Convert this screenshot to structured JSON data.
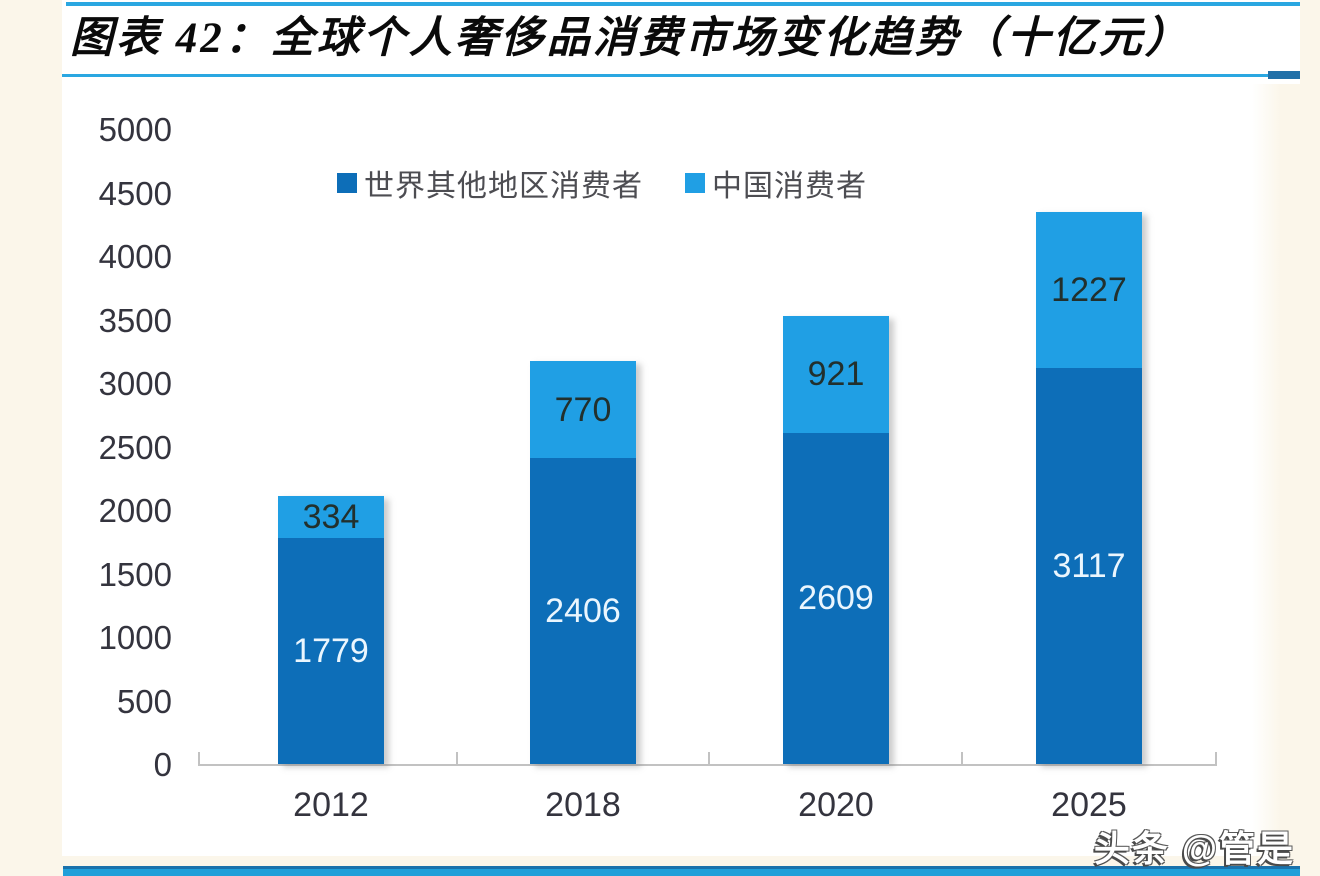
{
  "page": {
    "background": "#FBF6EA",
    "panel_background": "#FFFFFF",
    "accent_line_color": "#2AA7E1",
    "accent_tab_color": "#2170A8",
    "bottom_bar_top_color": "#1A72AC",
    "bottom_bar_color": "#209FD9"
  },
  "header": {
    "title": "图表 42：全球个人奢侈品消费市场变化趋势（十亿元）"
  },
  "watermark": {
    "text": "头条 @管是"
  },
  "chart_data": {
    "type": "bar",
    "stacked": true,
    "title": "全球个人奢侈品消费市场变化趋势（十亿元）",
    "unit": "十亿元",
    "categories": [
      "2012",
      "2018",
      "2020",
      "2025"
    ],
    "series": [
      {
        "name": "世界其他地区消费者",
        "color": "#0D6EB8",
        "label_color": "#EAF6FE",
        "values": [
          1779,
          2406,
          2609,
          3117
        ]
      },
      {
        "name": "中国消费者",
        "color": "#209FE4",
        "label_color": "#22302D",
        "values": [
          334,
          770,
          921,
          1227
        ]
      }
    ],
    "totals": [
      2113,
      3176,
      3530,
      4344
    ],
    "ylim": [
      0,
      5000
    ],
    "ytick_step": 500,
    "yticks": [
      "5000",
      "4500",
      "4000",
      "3500",
      "3000",
      "2500",
      "2000",
      "1500",
      "1000",
      "500",
      "0"
    ],
    "legend_position": "top",
    "grid": false,
    "axis_color": "#C2C2C2",
    "tick_label_color": "#34343E"
  }
}
